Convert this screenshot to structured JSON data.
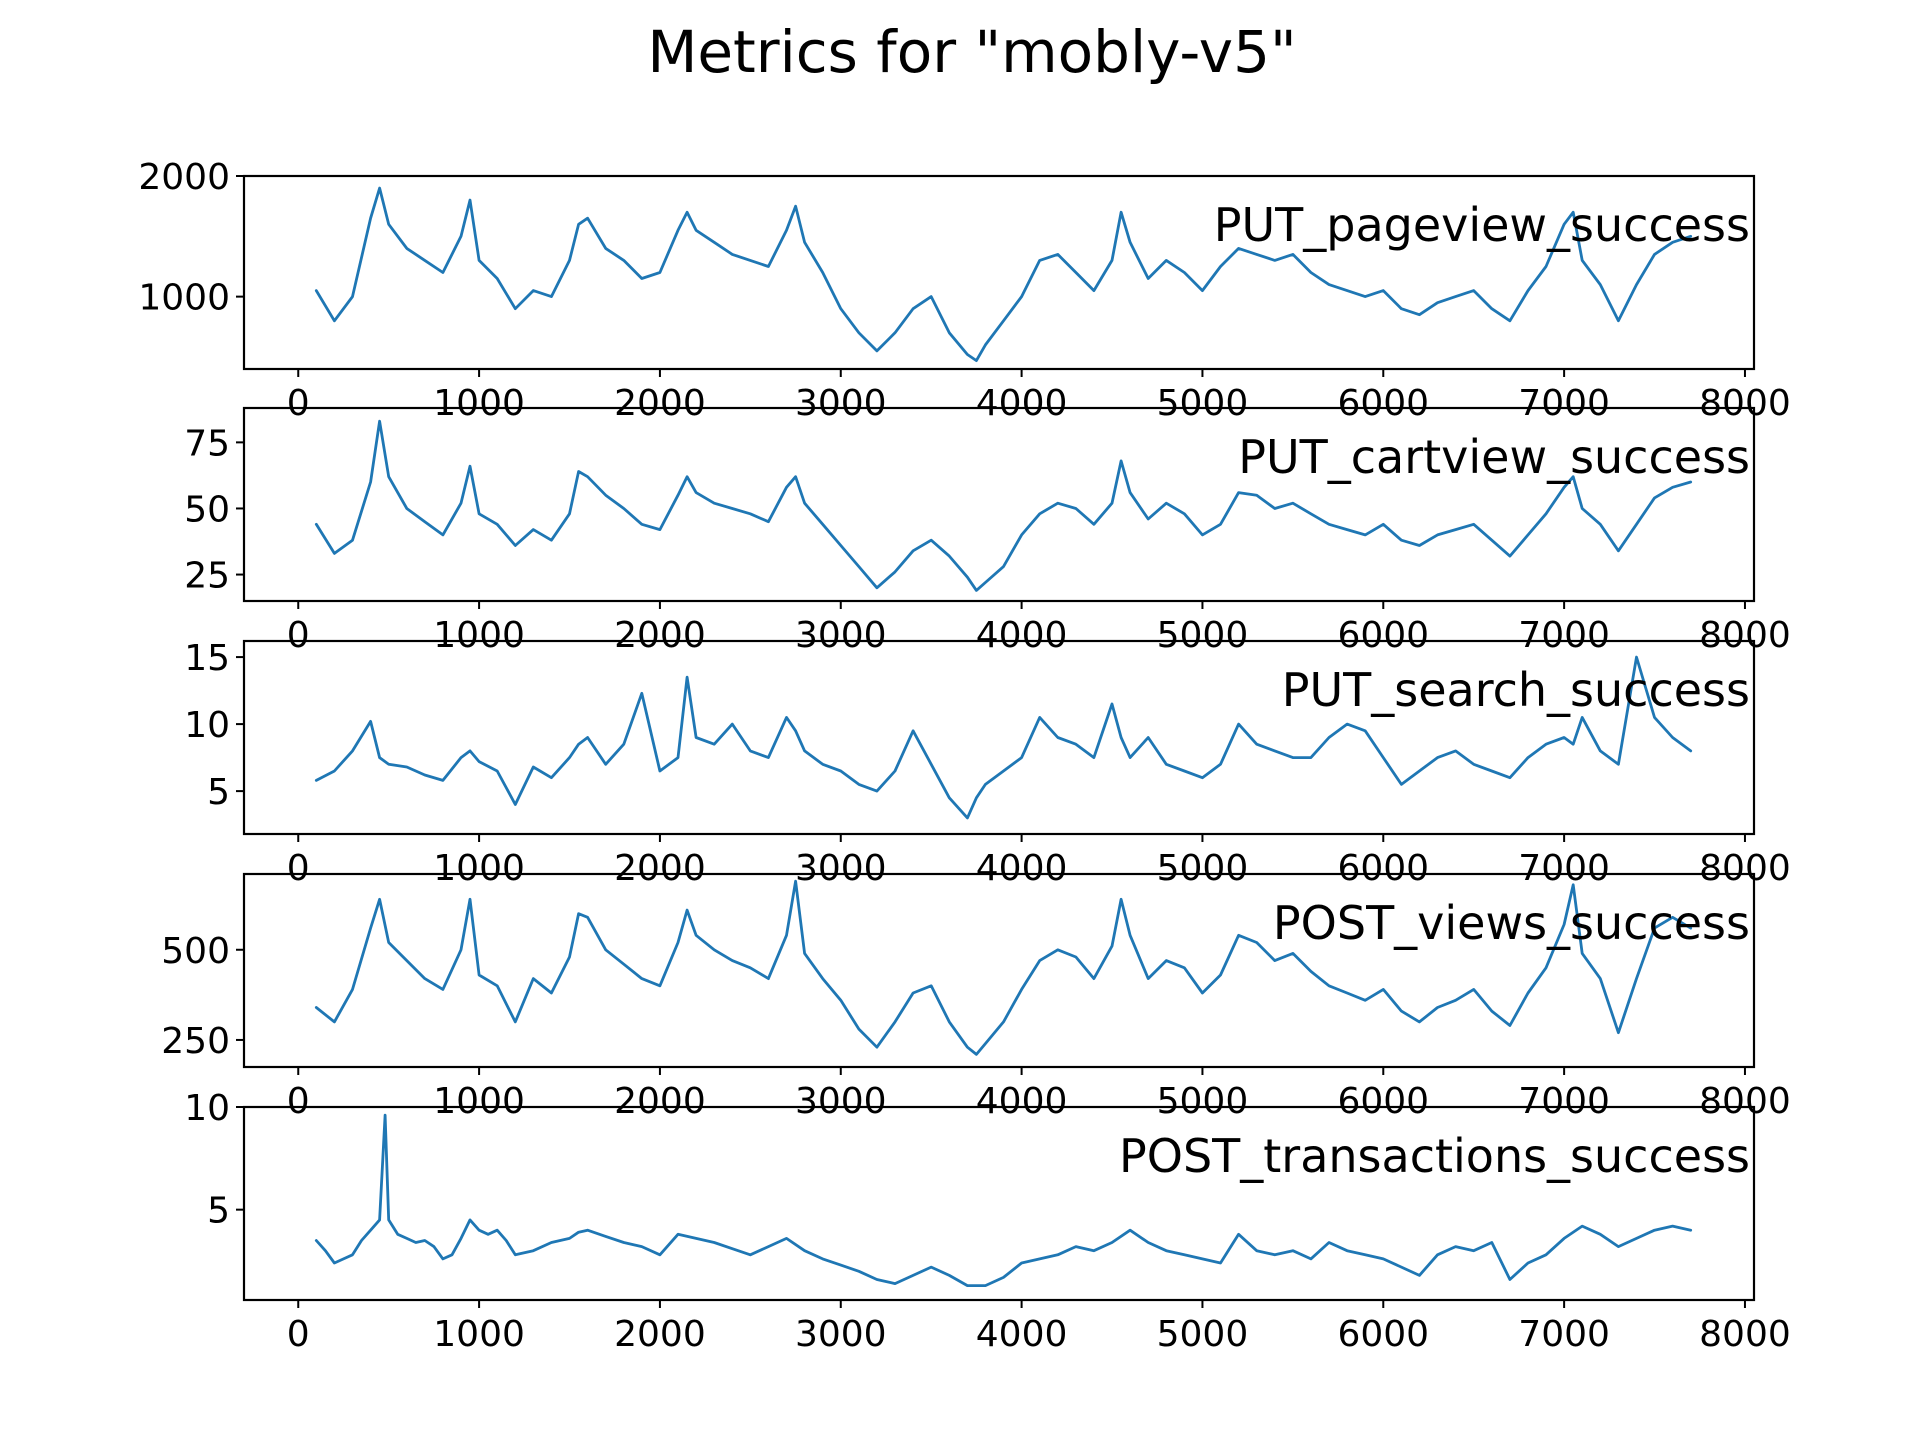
{
  "title": "Metrics for \"mobly-v5\"",
  "chart_data": [
    {
      "type": "line",
      "label": "PUT_pageview_success",
      "color": "#1f77b4",
      "xlim": [
        -300,
        8050
      ],
      "ylim": [
        400,
        2000
      ],
      "xticks": [
        0,
        1000,
        2000,
        3000,
        4000,
        5000,
        6000,
        7000,
        8000
      ],
      "xtick_labels": [
        "0",
        "1000",
        "2000",
        "3000",
        "4000",
        "5000",
        "6000",
        "7000",
        "8000"
      ],
      "yticks": [
        1000,
        2000
      ],
      "ytick_labels": [
        "1000",
        "2000"
      ],
      "x": [
        100,
        200,
        300,
        400,
        450,
        500,
        600,
        700,
        800,
        900,
        950,
        1000,
        1100,
        1200,
        1300,
        1400,
        1500,
        1550,
        1600,
        1700,
        1800,
        1900,
        2000,
        2100,
        2150,
        2200,
        2300,
        2400,
        2500,
        2600,
        2700,
        2750,
        2800,
        2900,
        3000,
        3100,
        3200,
        3300,
        3400,
        3500,
        3600,
        3700,
        3750,
        3800,
        3900,
        4000,
        4100,
        4200,
        4300,
        4400,
        4500,
        4550,
        4600,
        4700,
        4800,
        4900,
        5000,
        5100,
        5200,
        5300,
        5400,
        5500,
        5600,
        5700,
        5800,
        5900,
        6000,
        6100,
        6200,
        6300,
        6400,
        6500,
        6600,
        6700,
        6800,
        6900,
        7000,
        7050,
        7100,
        7200,
        7300,
        7400,
        7500,
        7600,
        7700
      ],
      "y": [
        1050,
        800,
        1000,
        1650,
        1900,
        1600,
        1400,
        1300,
        1200,
        1500,
        1800,
        1300,
        1150,
        900,
        1050,
        1000,
        1300,
        1600,
        1650,
        1400,
        1300,
        1150,
        1200,
        1550,
        1700,
        1550,
        1450,
        1350,
        1300,
        1250,
        1550,
        1750,
        1450,
        1200,
        900,
        700,
        550,
        700,
        900,
        1000,
        700,
        520,
        470,
        600,
        800,
        1000,
        1300,
        1350,
        1200,
        1050,
        1300,
        1700,
        1450,
        1150,
        1300,
        1200,
        1050,
        1250,
        1400,
        1350,
        1300,
        1350,
        1200,
        1100,
        1050,
        1000,
        1050,
        900,
        850,
        950,
        1000,
        1050,
        900,
        800,
        1050,
        1250,
        1600,
        1700,
        1300,
        1100,
        800,
        1100,
        1350,
        1450,
        1500
      ]
    },
    {
      "type": "line",
      "label": "PUT_cartview_success",
      "color": "#1f77b4",
      "xlim": [
        -300,
        8050
      ],
      "ylim": [
        15,
        88
      ],
      "xticks": [
        0,
        1000,
        2000,
        3000,
        4000,
        5000,
        6000,
        7000,
        8000
      ],
      "xtick_labels": [
        "0",
        "1000",
        "2000",
        "3000",
        "4000",
        "5000",
        "6000",
        "7000",
        "8000"
      ],
      "yticks": [
        25,
        50,
        75
      ],
      "ytick_labels": [
        "25",
        "50",
        "75"
      ],
      "x": [
        100,
        200,
        300,
        400,
        450,
        500,
        600,
        700,
        800,
        900,
        950,
        1000,
        1100,
        1200,
        1300,
        1400,
        1500,
        1550,
        1600,
        1700,
        1800,
        1900,
        2000,
        2100,
        2150,
        2200,
        2300,
        2400,
        2500,
        2600,
        2700,
        2750,
        2800,
        2900,
        3000,
        3100,
        3200,
        3300,
        3400,
        3500,
        3600,
        3700,
        3750,
        3800,
        3900,
        4000,
        4100,
        4200,
        4300,
        4400,
        4500,
        4550,
        4600,
        4700,
        4800,
        4900,
        5000,
        5100,
        5200,
        5300,
        5400,
        5500,
        5600,
        5700,
        5800,
        5900,
        6000,
        6100,
        6200,
        6300,
        6400,
        6500,
        6600,
        6700,
        6800,
        6900,
        7000,
        7050,
        7100,
        7200,
        7300,
        7400,
        7500,
        7600,
        7700
      ],
      "y": [
        44,
        33,
        38,
        60,
        83,
        62,
        50,
        45,
        40,
        52,
        66,
        48,
        44,
        36,
        42,
        38,
        48,
        64,
        62,
        55,
        50,
        44,
        42,
        55,
        62,
        56,
        52,
        50,
        48,
        45,
        58,
        62,
        52,
        44,
        36,
        28,
        20,
        26,
        34,
        38,
        32,
        24,
        19,
        22,
        28,
        40,
        48,
        52,
        50,
        44,
        52,
        68,
        56,
        46,
        52,
        48,
        40,
        44,
        56,
        55,
        50,
        52,
        48,
        44,
        42,
        40,
        44,
        38,
        36,
        40,
        42,
        44,
        38,
        32,
        40,
        48,
        58,
        62,
        50,
        44,
        34,
        44,
        54,
        58,
        60
      ]
    },
    {
      "type": "line",
      "label": "PUT_search_success",
      "color": "#1f77b4",
      "xlim": [
        -300,
        8050
      ],
      "ylim": [
        1.8,
        16.2
      ],
      "xticks": [
        0,
        1000,
        2000,
        3000,
        4000,
        5000,
        6000,
        7000,
        8000
      ],
      "xtick_labels": [
        "0",
        "1000",
        "2000",
        "3000",
        "4000",
        "5000",
        "6000",
        "7000",
        "8000"
      ],
      "yticks": [
        5,
        10,
        15
      ],
      "ytick_labels": [
        "5",
        "10",
        "15"
      ],
      "x": [
        100,
        200,
        300,
        400,
        450,
        500,
        600,
        700,
        800,
        900,
        950,
        1000,
        1100,
        1200,
        1300,
        1400,
        1500,
        1550,
        1600,
        1700,
        1800,
        1900,
        2000,
        2100,
        2150,
        2200,
        2300,
        2400,
        2500,
        2600,
        2700,
        2750,
        2800,
        2900,
        3000,
        3100,
        3200,
        3300,
        3400,
        3500,
        3600,
        3700,
        3750,
        3800,
        3900,
        4000,
        4100,
        4200,
        4300,
        4400,
        4500,
        4550,
        4600,
        4700,
        4800,
        4900,
        5000,
        5100,
        5200,
        5300,
        5400,
        5500,
        5600,
        5700,
        5800,
        5900,
        6000,
        6100,
        6200,
        6300,
        6400,
        6500,
        6600,
        6700,
        6800,
        6900,
        7000,
        7050,
        7100,
        7200,
        7300,
        7400,
        7500,
        7600,
        7700
      ],
      "y": [
        5.8,
        6.5,
        8.0,
        10.2,
        7.5,
        7.0,
        6.8,
        6.2,
        5.8,
        7.5,
        8.0,
        7.2,
        6.5,
        4.0,
        6.8,
        6.0,
        7.5,
        8.5,
        9.0,
        7.0,
        8.5,
        12.3,
        6.5,
        7.5,
        13.5,
        9.0,
        8.5,
        10.0,
        8.0,
        7.5,
        10.5,
        9.5,
        8.0,
        7.0,
        6.5,
        5.5,
        5.0,
        6.5,
        9.5,
        7.0,
        4.5,
        3.0,
        4.5,
        5.5,
        6.5,
        7.5,
        10.5,
        9.0,
        8.5,
        7.5,
        11.5,
        9.0,
        7.5,
        9.0,
        7.0,
        6.5,
        6.0,
        7.0,
        10.0,
        8.5,
        8.0,
        7.5,
        7.5,
        9.0,
        10.0,
        9.5,
        7.5,
        5.5,
        6.5,
        7.5,
        8.0,
        7.0,
        6.5,
        6.0,
        7.5,
        8.5,
        9.0,
        8.5,
        10.5,
        8.0,
        7.0,
        15.0,
        10.5,
        9.0,
        8.0
      ]
    },
    {
      "type": "line",
      "label": "POST_views_success",
      "color": "#1f77b4",
      "xlim": [
        -300,
        8050
      ],
      "ylim": [
        175,
        710
      ],
      "xticks": [
        0,
        1000,
        2000,
        3000,
        4000,
        5000,
        6000,
        7000,
        8000
      ],
      "xtick_labels": [
        "0",
        "1000",
        "2000",
        "3000",
        "4000",
        "5000",
        "6000",
        "7000",
        "8000"
      ],
      "yticks": [
        250,
        500
      ],
      "ytick_labels": [
        "250",
        "500"
      ],
      "x": [
        100,
        200,
        300,
        400,
        450,
        500,
        600,
        700,
        800,
        900,
        950,
        1000,
        1100,
        1200,
        1300,
        1400,
        1500,
        1550,
        1600,
        1700,
        1800,
        1900,
        2000,
        2100,
        2150,
        2200,
        2300,
        2400,
        2500,
        2600,
        2700,
        2750,
        2800,
        2900,
        3000,
        3100,
        3200,
        3300,
        3400,
        3500,
        3600,
        3700,
        3750,
        3800,
        3900,
        4000,
        4100,
        4200,
        4300,
        4400,
        4500,
        4550,
        4600,
        4700,
        4800,
        4900,
        5000,
        5100,
        5200,
        5300,
        5400,
        5500,
        5600,
        5700,
        5800,
        5900,
        6000,
        6100,
        6200,
        6300,
        6400,
        6500,
        6600,
        6700,
        6800,
        6900,
        7000,
        7050,
        7100,
        7200,
        7300,
        7400,
        7500,
        7600,
        7700
      ],
      "y": [
        340,
        300,
        390,
        560,
        640,
        520,
        470,
        420,
        390,
        500,
        640,
        430,
        400,
        300,
        420,
        380,
        480,
        600,
        590,
        500,
        460,
        420,
        400,
        520,
        610,
        540,
        500,
        470,
        450,
        420,
        540,
        690,
        490,
        420,
        360,
        280,
        230,
        300,
        380,
        400,
        300,
        230,
        210,
        240,
        300,
        390,
        470,
        500,
        480,
        420,
        510,
        640,
        540,
        420,
        470,
        450,
        380,
        430,
        540,
        520,
        470,
        490,
        440,
        400,
        380,
        360,
        390,
        330,
        300,
        340,
        360,
        390,
        330,
        290,
        380,
        450,
        570,
        680,
        490,
        420,
        270,
        420,
        560,
        590,
        560
      ]
    },
    {
      "type": "line",
      "label": "POST_transactions_success",
      "color": "#1f77b4",
      "xlim": [
        -300,
        8050
      ],
      "ylim": [
        0.6,
        10.0
      ],
      "xticks": [
        0,
        1000,
        2000,
        3000,
        4000,
        5000,
        6000,
        7000,
        8000
      ],
      "xtick_labels": [
        "0",
        "1000",
        "2000",
        "3000",
        "4000",
        "5000",
        "6000",
        "7000",
        "8000"
      ],
      "yticks": [
        5,
        10
      ],
      "ytick_labels": [
        "5",
        "10"
      ],
      "x": [
        100,
        150,
        200,
        250,
        300,
        350,
        400,
        450,
        480,
        500,
        550,
        600,
        650,
        700,
        750,
        800,
        850,
        900,
        950,
        1000,
        1050,
        1100,
        1150,
        1200,
        1300,
        1400,
        1500,
        1550,
        1600,
        1700,
        1800,
        1900,
        2000,
        2100,
        2200,
        2300,
        2400,
        2500,
        2600,
        2700,
        2800,
        2900,
        3000,
        3100,
        3200,
        3300,
        3400,
        3500,
        3600,
        3700,
        3800,
        3900,
        4000,
        4100,
        4200,
        4300,
        4400,
        4500,
        4600,
        4700,
        4800,
        4900,
        5000,
        5100,
        5200,
        5300,
        5400,
        5500,
        5600,
        5700,
        5800,
        5900,
        6000,
        6100,
        6200,
        6300,
        6400,
        6500,
        6600,
        6700,
        6800,
        6900,
        7000,
        7100,
        7200,
        7300,
        7400,
        7500,
        7600,
        7700
      ],
      "y": [
        3.5,
        3.0,
        2.4,
        2.6,
        2.8,
        3.5,
        4.0,
        4.5,
        9.6,
        4.5,
        3.8,
        3.6,
        3.4,
        3.5,
        3.2,
        2.6,
        2.8,
        3.6,
        4.5,
        4.0,
        3.8,
        4.0,
        3.5,
        2.8,
        3.0,
        3.4,
        3.6,
        3.9,
        4.0,
        3.7,
        3.4,
        3.2,
        2.8,
        3.8,
        3.6,
        3.4,
        3.1,
        2.8,
        3.2,
        3.6,
        3.0,
        2.6,
        2.3,
        2.0,
        1.6,
        1.4,
        1.8,
        2.2,
        1.8,
        1.3,
        1.3,
        1.7,
        2.4,
        2.6,
        2.8,
        3.2,
        3.0,
        3.4,
        4.0,
        3.4,
        3.0,
        2.8,
        2.6,
        2.4,
        3.8,
        3.0,
        2.8,
        3.0,
        2.6,
        3.4,
        3.0,
        2.8,
        2.6,
        2.2,
        1.8,
        2.8,
        3.2,
        3.0,
        3.4,
        1.6,
        2.4,
        2.8,
        3.6,
        4.2,
        3.8,
        3.2,
        3.6,
        4.0,
        4.2,
        4.0
      ]
    }
  ]
}
